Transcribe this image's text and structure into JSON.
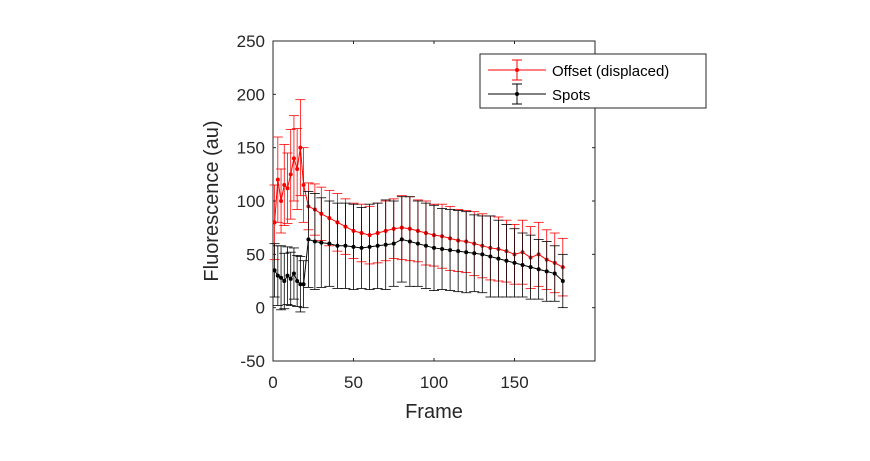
{
  "chart_data": {
    "type": "line",
    "title": "",
    "xlabel": "Frame",
    "ylabel": "Fluorescence (au)",
    "xlim": [
      0,
      200
    ],
    "ylim": [
      -50,
      250
    ],
    "xticks": [
      0,
      50,
      100,
      150
    ],
    "yticks": [
      -50,
      0,
      50,
      100,
      150,
      200,
      250
    ],
    "grid": false,
    "legend_position": "top-right",
    "series": [
      {
        "name": "Offset (displaced)",
        "color": "#ff0000",
        "x": [
          1,
          3,
          5,
          7,
          9,
          11,
          13,
          15,
          17,
          19,
          22,
          26,
          30,
          35,
          40,
          45,
          50,
          55,
          60,
          65,
          70,
          75,
          80,
          85,
          90,
          95,
          100,
          105,
          110,
          115,
          120,
          125,
          130,
          135,
          140,
          145,
          150,
          155,
          160,
          165,
          170,
          175,
          180
        ],
        "y": [
          80,
          120,
          100,
          115,
          112,
          125,
          140,
          130,
          150,
          115,
          95,
          92,
          88,
          84,
          80,
          76,
          72,
          70,
          68,
          70,
          72,
          74,
          75,
          74,
          72,
          70,
          68,
          67,
          65,
          63,
          62,
          60,
          58,
          56,
          55,
          53,
          50,
          52,
          47,
          50,
          45,
          42,
          38
        ],
        "err": [
          35,
          40,
          30,
          38,
          33,
          42,
          40,
          38,
          45,
          35,
          22,
          24,
          25,
          26,
          27,
          26,
          26,
          27,
          27,
          28,
          28,
          28,
          30,
          30,
          29,
          30,
          29,
          30,
          30,
          29,
          29,
          30,
          30,
          30,
          30,
          29,
          28,
          30,
          29,
          30,
          28,
          28,
          27
        ]
      },
      {
        "name": "Spots",
        "color": "#000000",
        "x": [
          1,
          3,
          5,
          7,
          9,
          11,
          13,
          15,
          17,
          19,
          22,
          26,
          30,
          35,
          40,
          45,
          50,
          55,
          60,
          65,
          70,
          75,
          80,
          85,
          90,
          95,
          100,
          105,
          110,
          115,
          120,
          125,
          130,
          135,
          140,
          145,
          150,
          155,
          160,
          165,
          170,
          175,
          180
        ],
        "y": [
          35,
          30,
          28,
          25,
          30,
          27,
          32,
          25,
          22,
          22,
          64,
          62,
          61,
          60,
          58,
          58,
          57,
          56,
          57,
          58,
          59,
          60,
          64,
          62,
          60,
          58,
          56,
          55,
          54,
          53,
          52,
          51,
          50,
          48,
          46,
          44,
          42,
          40,
          38,
          36,
          34,
          32,
          25
        ],
        "err": [
          25,
          28,
          30,
          26,
          27,
          25,
          24,
          24,
          26,
          22,
          45,
          45,
          42,
          40,
          40,
          40,
          40,
          38,
          40,
          40,
          42,
          40,
          40,
          42,
          40,
          40,
          40,
          38,
          38,
          38,
          38,
          36,
          36,
          38,
          36,
          34,
          32,
          30,
          30,
          28,
          28,
          26,
          25
        ]
      }
    ]
  }
}
